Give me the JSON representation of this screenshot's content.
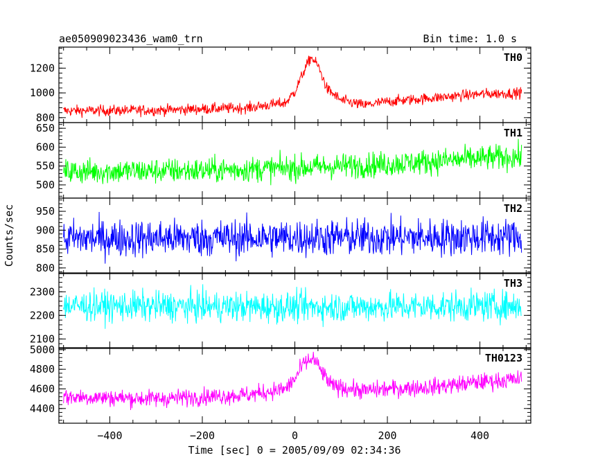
{
  "chart_data": {
    "type": "line",
    "title": "ae050909023436_wam0_trn",
    "bin_time_label": "Bin time: 1.0 s",
    "xlabel": "Time [sec] 0 = 2005/09/09 02:34:36",
    "ylabel": "Counts/sec",
    "xlim": [
      -510,
      510
    ],
    "x_ticks": [
      -400,
      -200,
      0,
      200,
      400
    ],
    "x_tick_labels": [
      "−400",
      "−200",
      "0",
      "200",
      "400"
    ],
    "x_range_of_data": [
      -500,
      490
    ],
    "panels": [
      {
        "name": "TH0",
        "color": "#ff0000",
        "ylim": [
          760,
          1370
        ],
        "y_ticks": [
          800,
          1000,
          1200
        ],
        "y_tick_labels": [
          "800",
          "1000",
          "1200"
        ],
        "baseline_points": [
          [
            -500,
            855
          ],
          [
            -300,
            860
          ],
          [
            -100,
            880
          ],
          [
            -20,
            920
          ],
          [
            0,
            1010
          ],
          [
            20,
            1180
          ],
          [
            35,
            1290
          ],
          [
            50,
            1220
          ],
          [
            70,
            1030
          ],
          [
            100,
            940
          ],
          [
            150,
            900
          ],
          [
            200,
            930
          ],
          [
            300,
            960
          ],
          [
            400,
            990
          ],
          [
            490,
            1000
          ]
        ],
        "noise_amplitude": 55
      },
      {
        "name": "TH1",
        "color": "#00ff00",
        "ylim": [
          465,
          665
        ],
        "y_ticks": [
          500,
          550,
          600,
          650
        ],
        "y_tick_labels": [
          "500",
          "550",
          "600",
          "650"
        ],
        "baseline_points": [
          [
            -500,
            535
          ],
          [
            -200,
            538
          ],
          [
            0,
            545
          ],
          [
            200,
            555
          ],
          [
            400,
            570
          ],
          [
            490,
            575
          ]
        ],
        "noise_amplitude": 42
      },
      {
        "name": "TH2",
        "color": "#0000ff",
        "ylim": [
          785,
          985
        ],
        "y_ticks": [
          800,
          850,
          900,
          950
        ],
        "y_tick_labels": [
          "800",
          "850",
          "900",
          "950"
        ],
        "baseline_points": [
          [
            -500,
            878
          ],
          [
            0,
            880
          ],
          [
            490,
            882
          ]
        ],
        "noise_amplitude": 62
      },
      {
        "name": "TH3",
        "color": "#00ffff",
        "ylim": [
          2060,
          2380
        ],
        "y_ticks": [
          2100,
          2200,
          2300
        ],
        "y_tick_labels": [
          "2100",
          "2200",
          "2300"
        ],
        "baseline_points": [
          [
            -500,
            2240
          ],
          [
            0,
            2235
          ],
          [
            490,
            2240
          ]
        ],
        "noise_amplitude": 80
      },
      {
        "name": "TH0123",
        "color": "#ff00ff",
        "ylim": [
          4250,
          5020
        ],
        "y_ticks": [
          4400,
          4600,
          4800,
          5000
        ],
        "y_tick_labels": [
          "4400",
          "4600",
          "4800",
          "5000"
        ],
        "baseline_points": [
          [
            -500,
            4520
          ],
          [
            -300,
            4500
          ],
          [
            -100,
            4540
          ],
          [
            -20,
            4600
          ],
          [
            0,
            4700
          ],
          [
            20,
            4860
          ],
          [
            40,
            4910
          ],
          [
            60,
            4760
          ],
          [
            80,
            4630
          ],
          [
            150,
            4580
          ],
          [
            200,
            4600
          ],
          [
            300,
            4620
          ],
          [
            400,
            4670
          ],
          [
            490,
            4700
          ]
        ],
        "noise_amplitude": 110
      }
    ]
  }
}
